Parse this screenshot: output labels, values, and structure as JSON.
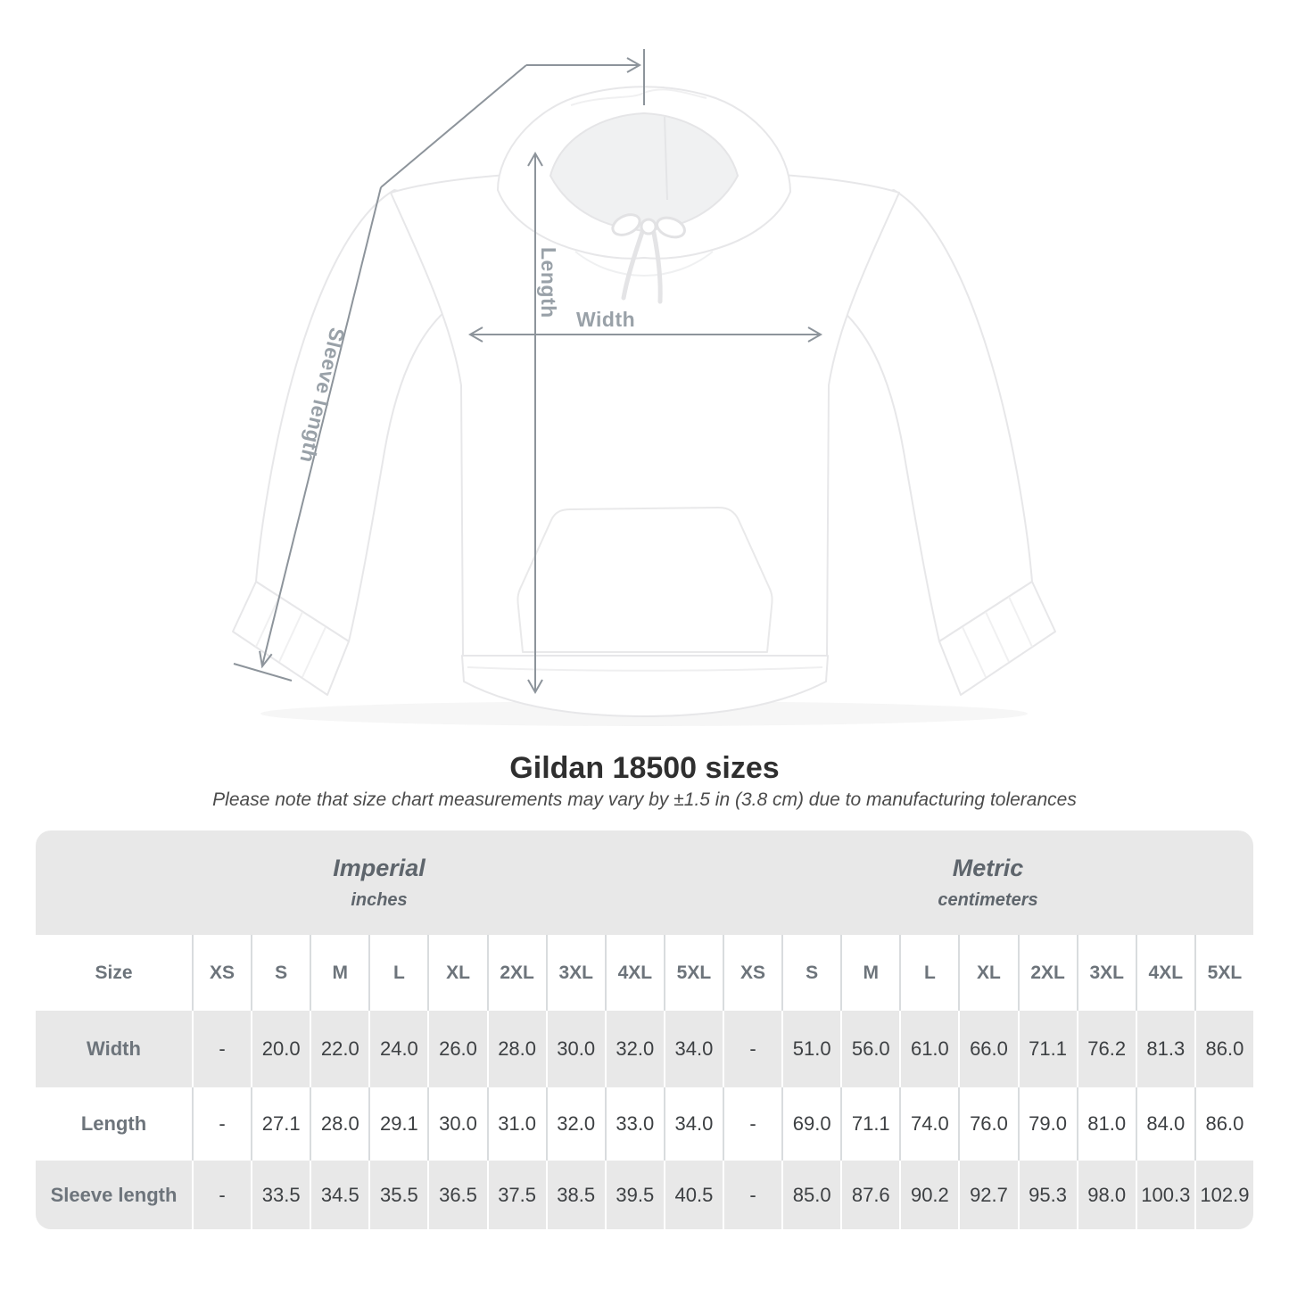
{
  "title": "Gildan 18500 sizes",
  "note": "Please note that size chart measurements may vary by ±1.5 in (3.8 cm) due to manufacturing tolerances",
  "diagram": {
    "labels": {
      "length": "Length",
      "width": "Width",
      "sleeve": "Sleeve length"
    }
  },
  "colors": {
    "arrow": "#8d949b",
    "diagram_label": "#99a1a8",
    "table_band_gray": "#e8e8e8",
    "header_text": "#6d747b",
    "value_text": "#3d4043"
  },
  "table": {
    "size_header": "Size",
    "unit_groups": [
      {
        "label": "Imperial",
        "sublabel": "inches",
        "colspan": 10
      },
      {
        "label": "Metric",
        "sublabel": "centimeters",
        "colspan": 9
      }
    ],
    "sizes": [
      "XS",
      "S",
      "M",
      "L",
      "XL",
      "2XL",
      "3XL",
      "4XL",
      "5XL"
    ],
    "rows": [
      {
        "label": "Width",
        "imperial": [
          "-",
          "20.0",
          "22.0",
          "24.0",
          "26.0",
          "28.0",
          "30.0",
          "32.0",
          "34.0"
        ],
        "metric": [
          "-",
          "51.0",
          "56.0",
          "61.0",
          "66.0",
          "71.1",
          "76.2",
          "81.3",
          "86.0"
        ]
      },
      {
        "label": "Length",
        "imperial": [
          "-",
          "27.1",
          "28.0",
          "29.1",
          "30.0",
          "31.0",
          "32.0",
          "33.0",
          "34.0"
        ],
        "metric": [
          "-",
          "69.0",
          "71.1",
          "74.0",
          "76.0",
          "79.0",
          "81.0",
          "84.0",
          "86.0"
        ]
      },
      {
        "label": "Sleeve length",
        "imperial": [
          "-",
          "33.5",
          "34.5",
          "35.5",
          "36.5",
          "37.5",
          "38.5",
          "39.5",
          "40.5"
        ],
        "metric": [
          "-",
          "85.0",
          "87.6",
          "90.2",
          "92.7",
          "95.3",
          "98.0",
          "100.3",
          "102.9"
        ]
      }
    ]
  }
}
